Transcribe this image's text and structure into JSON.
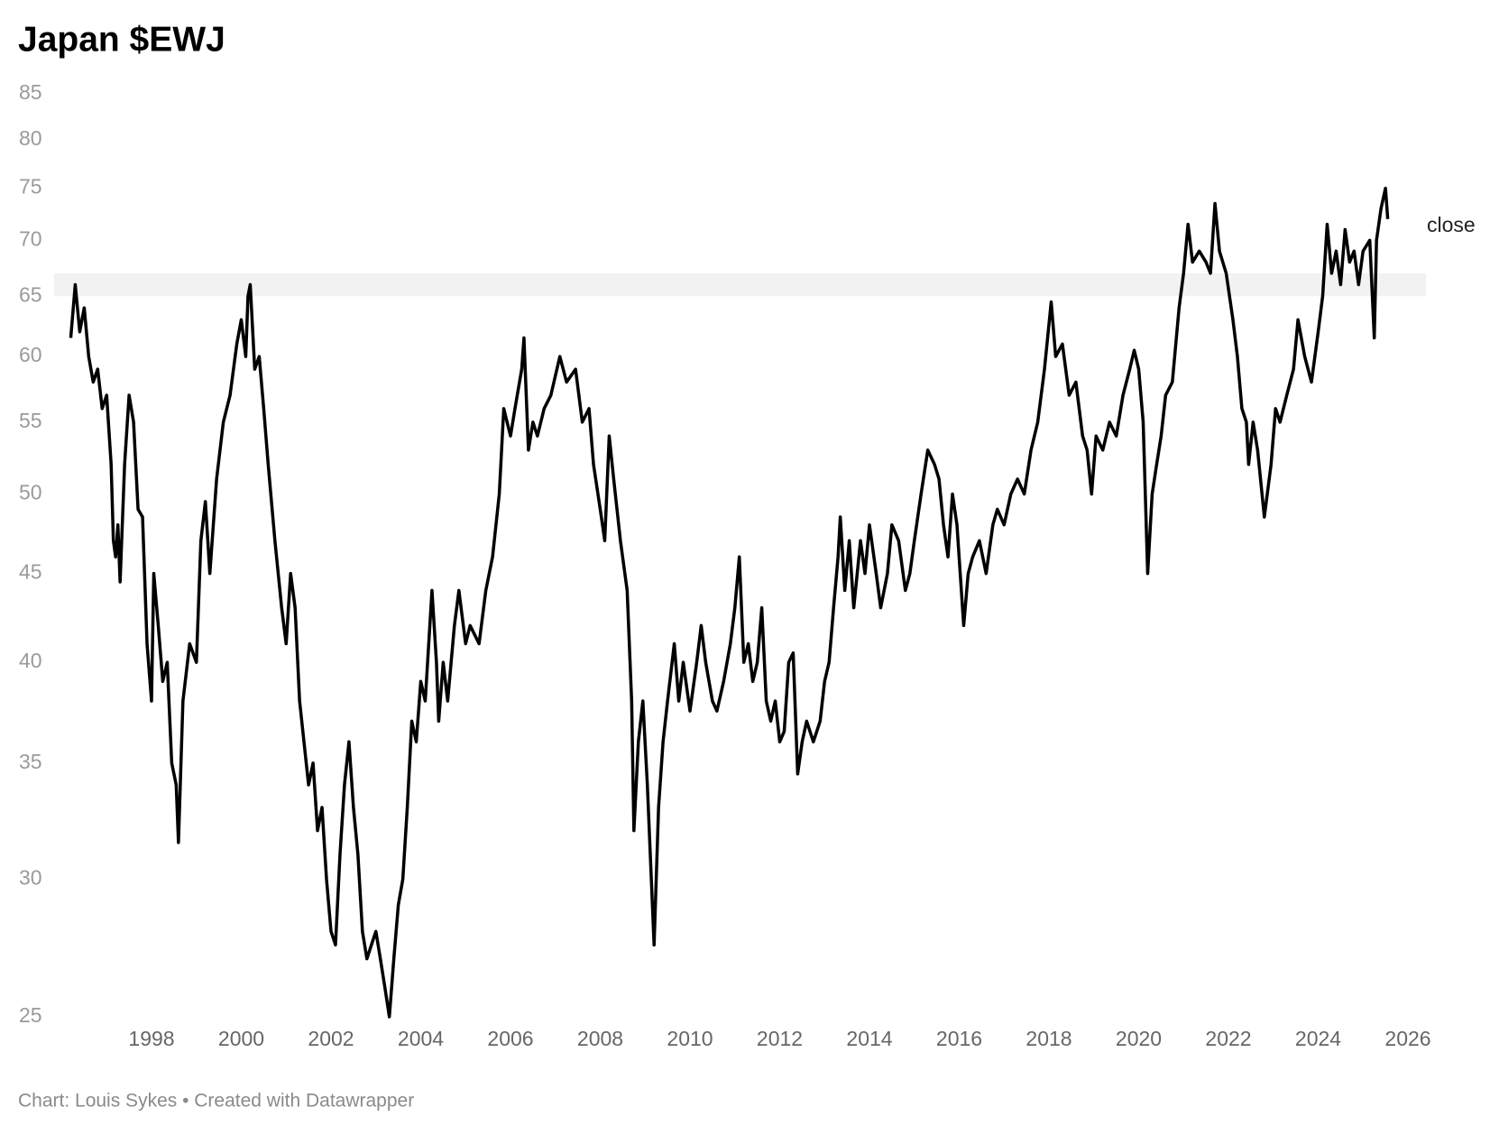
{
  "chart_data": {
    "type": "line",
    "title": "Japan $EWJ",
    "footer": "Chart: Louis Sykes • Created with Datawrapper",
    "log_scale": true,
    "grid": false,
    "band": [
      65,
      67
    ],
    "band_color": "#f2f2f2",
    "xlim": [
      1996,
      2026
    ],
    "xticks": [
      1998,
      2000,
      2002,
      2004,
      2006,
      2008,
      2010,
      2012,
      2014,
      2016,
      2018,
      2020,
      2022,
      2024,
      2026
    ],
    "ylim": [
      25,
      85
    ],
    "yticks": [
      25,
      30,
      35,
      40,
      45,
      50,
      55,
      60,
      65,
      70,
      75,
      80,
      85
    ],
    "x": [
      1996.2,
      1996.3,
      1996.4,
      1996.5,
      1996.6,
      1996.7,
      1996.8,
      1996.9,
      1997.0,
      1997.1,
      1997.15,
      1997.2,
      1997.25,
      1997.3,
      1997.4,
      1997.5,
      1997.6,
      1997.7,
      1997.8,
      1997.9,
      1998.0,
      1998.05,
      1998.15,
      1998.25,
      1998.35,
      1998.45,
      1998.55,
      1998.6,
      1998.7,
      1998.85,
      1999.0,
      1999.1,
      1999.2,
      1999.3,
      1999.45,
      1999.6,
      1999.75,
      1999.9,
      2000.0,
      2000.1,
      2000.15,
      2000.2,
      2000.3,
      2000.4,
      2000.5,
      2000.6,
      2000.75,
      2000.9,
      2001.0,
      2001.1,
      2001.2,
      2001.3,
      2001.5,
      2001.6,
      2001.7,
      2001.8,
      2001.9,
      2002.0,
      2002.1,
      2002.2,
      2002.3,
      2002.4,
      2002.5,
      2002.6,
      2002.7,
      2002.8,
      2002.9,
      2003.0,
      2003.1,
      2003.2,
      2003.3,
      2003.4,
      2003.5,
      2003.6,
      2003.7,
      2003.8,
      2003.9,
      2004.0,
      2004.1,
      2004.25,
      2004.35,
      2004.4,
      2004.5,
      2004.6,
      2004.75,
      2004.85,
      2005.0,
      2005.1,
      2005.3,
      2005.45,
      2005.6,
      2005.75,
      2005.85,
      2006.0,
      2006.1,
      2006.25,
      2006.3,
      2006.4,
      2006.5,
      2006.6,
      2006.75,
      2006.9,
      2007.1,
      2007.25,
      2007.45,
      2007.6,
      2007.75,
      2007.85,
      2008.0,
      2008.1,
      2008.2,
      2008.3,
      2008.45,
      2008.6,
      2008.7,
      2008.75,
      2008.85,
      2008.95,
      2009.05,
      2009.2,
      2009.3,
      2009.4,
      2009.5,
      2009.65,
      2009.75,
      2009.85,
      2010.0,
      2010.15,
      2010.25,
      2010.35,
      2010.5,
      2010.6,
      2010.75,
      2010.9,
      2011.0,
      2011.1,
      2011.2,
      2011.3,
      2011.4,
      2011.5,
      2011.6,
      2011.7,
      2011.8,
      2011.9,
      2012.0,
      2012.1,
      2012.2,
      2012.3,
      2012.4,
      2012.5,
      2012.6,
      2012.75,
      2012.9,
      2013.0,
      2013.1,
      2013.2,
      2013.3,
      2013.35,
      2013.45,
      2013.55,
      2013.65,
      2013.8,
      2013.9,
      2014.0,
      2014.15,
      2014.25,
      2014.4,
      2014.5,
      2014.65,
      2014.8,
      2014.9,
      2015.0,
      2015.15,
      2015.3,
      2015.45,
      2015.55,
      2015.65,
      2015.75,
      2015.85,
      2015.95,
      2016.1,
      2016.2,
      2016.3,
      2016.45,
      2016.6,
      2016.75,
      2016.85,
      2017.0,
      2017.15,
      2017.3,
      2017.45,
      2017.6,
      2017.75,
      2017.9,
      2018.05,
      2018.15,
      2018.3,
      2018.45,
      2018.6,
      2018.75,
      2018.85,
      2018.95,
      2019.05,
      2019.2,
      2019.35,
      2019.5,
      2019.65,
      2019.8,
      2019.9,
      2020.0,
      2020.1,
      2020.2,
      2020.3,
      2020.4,
      2020.5,
      2020.6,
      2020.75,
      2020.9,
      2021.0,
      2021.1,
      2021.2,
      2021.35,
      2021.5,
      2021.6,
      2021.7,
      2021.8,
      2021.95,
      2022.1,
      2022.2,
      2022.3,
      2022.4,
      2022.45,
      2022.55,
      2022.65,
      2022.8,
      2022.95,
      2023.05,
      2023.15,
      2023.3,
      2023.45,
      2023.55,
      2023.7,
      2023.85,
      2024.0,
      2024.1,
      2024.2,
      2024.3,
      2024.4,
      2024.5,
      2024.6,
      2024.7,
      2024.8,
      2024.9,
      2025.0,
      2025.15,
      2025.25,
      2025.3,
      2025.4,
      2025.5,
      2025.55
    ],
    "series": [
      {
        "name": "close",
        "color": "#000000",
        "values": [
          61.5,
          66,
          62,
          64,
          60,
          58,
          59,
          56,
          57,
          52,
          47,
          46,
          48,
          44.5,
          52,
          57,
          55,
          49,
          48.5,
          41,
          38,
          45,
          42,
          39,
          40,
          35,
          34,
          31.5,
          38,
          41,
          40,
          47,
          49.5,
          45,
          51,
          55,
          57,
          61,
          63,
          60,
          65,
          66,
          59,
          60,
          56,
          52,
          47,
          43,
          41,
          45,
          43,
          38,
          34,
          35,
          32,
          33,
          30,
          28,
          27.5,
          31,
          34,
          36,
          33,
          31,
          28,
          27,
          27.5,
          28,
          27,
          26,
          25,
          27,
          29,
          30,
          33,
          37,
          36,
          39,
          38,
          44,
          40,
          37,
          40,
          38,
          42,
          44,
          41,
          42,
          41,
          44,
          46,
          50,
          56,
          54,
          56,
          59,
          61.5,
          53,
          55,
          54,
          56,
          57,
          60,
          58,
          59,
          55,
          56,
          52,
          49,
          47,
          54,
          51,
          47,
          44,
          38,
          32,
          36,
          38,
          34,
          27.5,
          33,
          36,
          38,
          41,
          38,
          40,
          37.5,
          40,
          42,
          40,
          38,
          37.5,
          39,
          41,
          43,
          46,
          40,
          41,
          39,
          40,
          43,
          38,
          37,
          38,
          36,
          36.5,
          40,
          40.5,
          34.5,
          36,
          37,
          36,
          37,
          39,
          40,
          43,
          46,
          48.5,
          44,
          47,
          43,
          47,
          45,
          48,
          45,
          43,
          45,
          48,
          47,
          44,
          45,
          47,
          50,
          53,
          52,
          51,
          48,
          46,
          50,
          48,
          42,
          45,
          46,
          47,
          45,
          48,
          49,
          48,
          50,
          51,
          50,
          53,
          55,
          59,
          64.5,
          60,
          61,
          57,
          58,
          54,
          53,
          50,
          54,
          53,
          55,
          54,
          57,
          59,
          60.5,
          59,
          55,
          45,
          50,
          52,
          54,
          57,
          58,
          64,
          67,
          71.5,
          68,
          69,
          68,
          67,
          73.5,
          69,
          67,
          63,
          60,
          56,
          55,
          52,
          55,
          53,
          48.5,
          52,
          56,
          55,
          57,
          59,
          63,
          60,
          58,
          62,
          65,
          71.5,
          67,
          69,
          66,
          71,
          68,
          69,
          66,
          69,
          70,
          61.5,
          70,
          73,
          75,
          72
        ]
      }
    ]
  }
}
